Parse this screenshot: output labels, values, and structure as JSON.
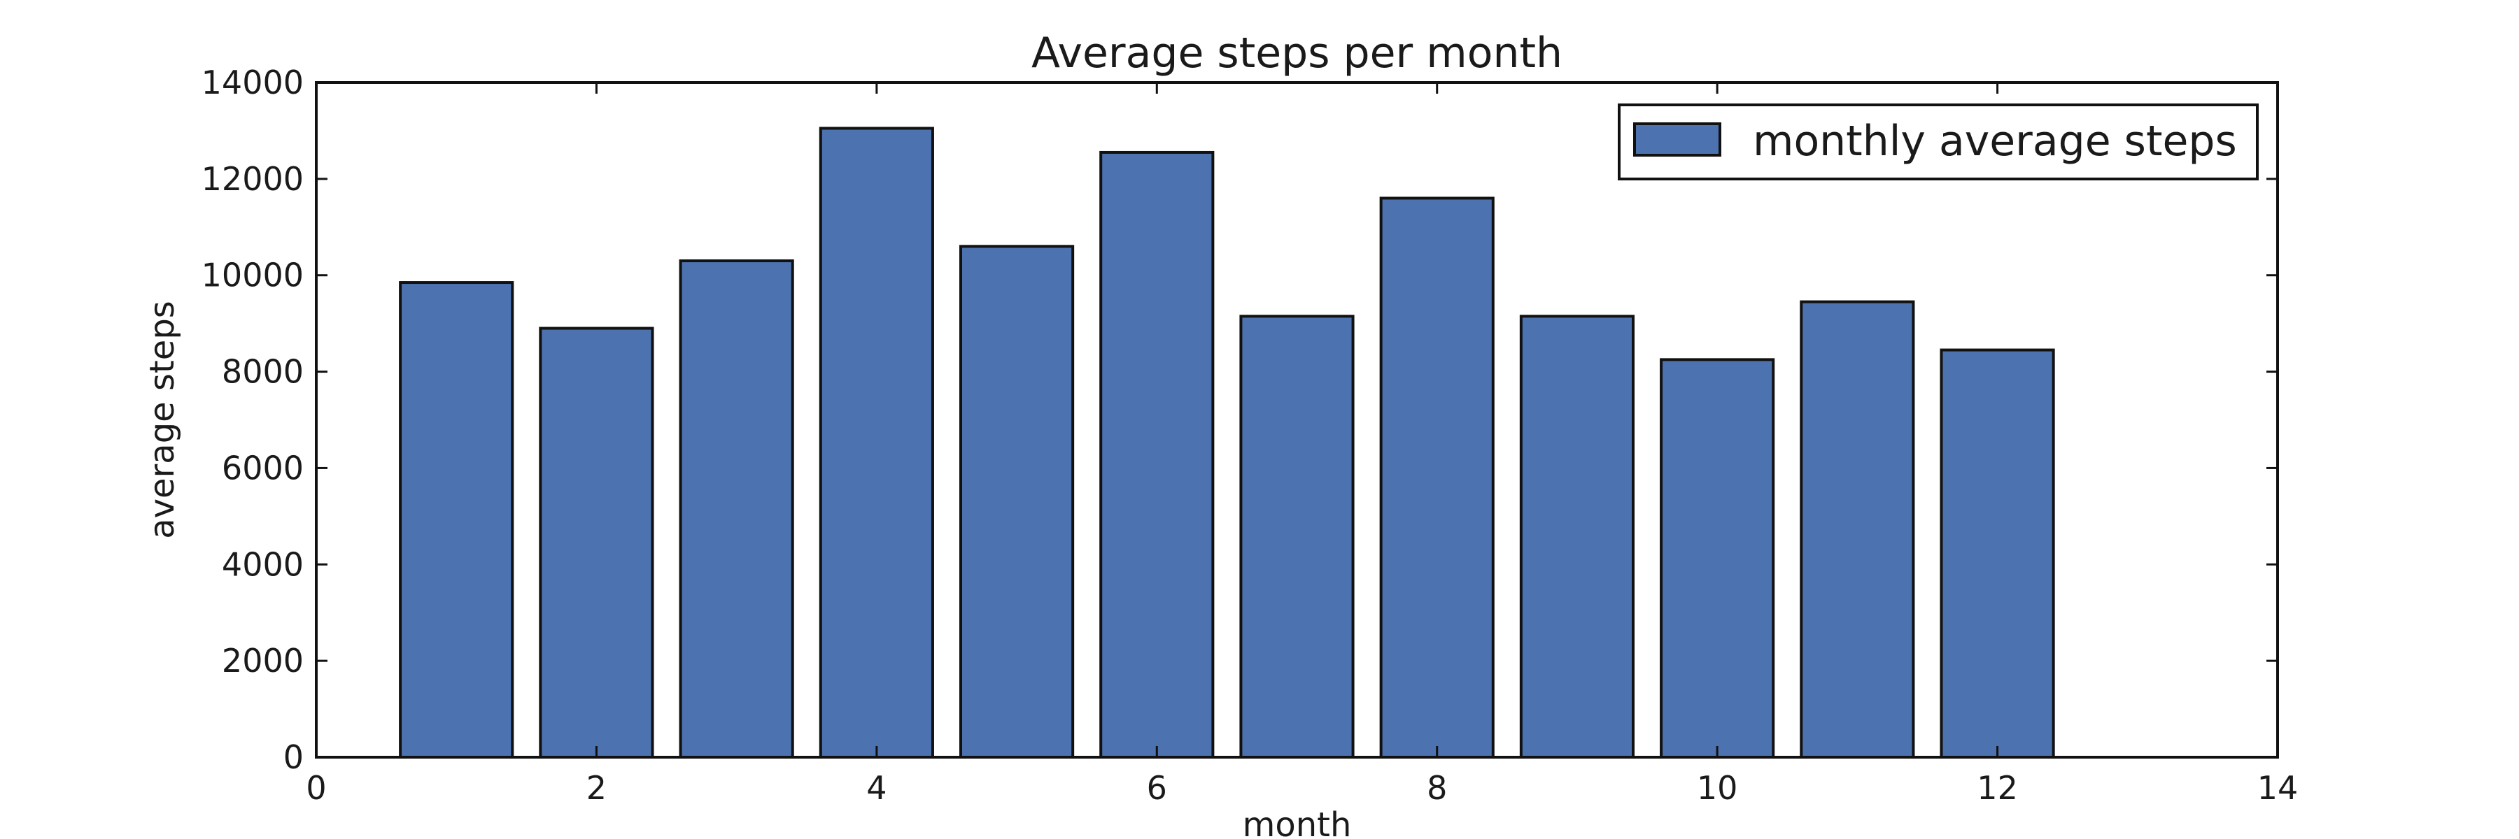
{
  "chart_data": {
    "type": "bar",
    "title": "Average steps per month",
    "xlabel": "month",
    "ylabel": "average steps",
    "x": [
      1,
      2,
      3,
      4,
      5,
      6,
      7,
      8,
      9,
      10,
      11,
      12
    ],
    "series": [
      {
        "name": "monthly average steps",
        "values": [
          9850,
          8900,
          10300,
          13050,
          10600,
          12550,
          9150,
          11600,
          9150,
          8250,
          9450,
          8450
        ]
      }
    ],
    "xlim": [
      0,
      14
    ],
    "ylim": [
      0,
      14000
    ],
    "xticks": [
      0,
      2,
      4,
      6,
      8,
      10,
      12,
      14
    ],
    "yticks": [
      0,
      2000,
      4000,
      6000,
      8000,
      10000,
      12000,
      14000
    ],
    "grid": false,
    "legend_position": "top-right",
    "colors": {
      "bar": "#4c72b0",
      "edge": "#111111"
    }
  }
}
